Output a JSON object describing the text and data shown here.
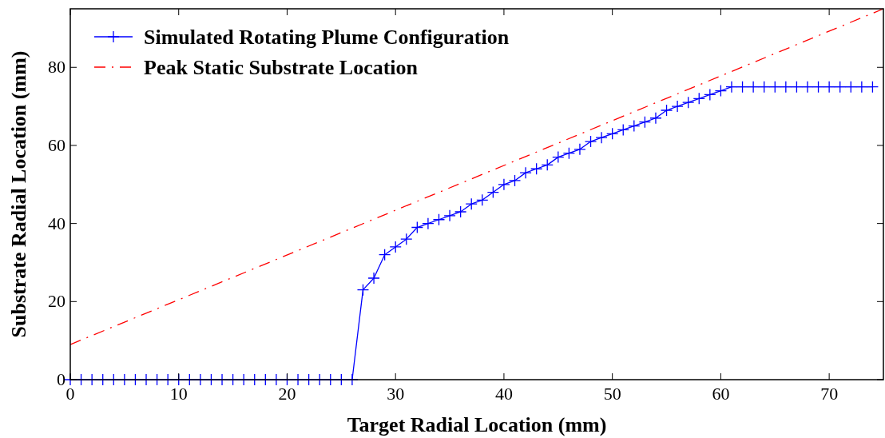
{
  "chart_data": {
    "type": "line",
    "xlabel": "Target Radial Location (mm)",
    "ylabel": "Substrate Radial Location (mm)",
    "xlim": [
      0,
      75
    ],
    "ylim": [
      0,
      95
    ],
    "xticks": [
      0,
      10,
      20,
      30,
      40,
      50,
      60,
      70
    ],
    "yticks": [
      0,
      20,
      40,
      60,
      80
    ],
    "grid": false,
    "legend": "top left",
    "series": [
      {
        "name": "Simulated Rotating Plume Configuration",
        "color": "#0000ff",
        "marker": "cross",
        "line_style": "solid",
        "x": [
          0,
          1,
          2,
          3,
          4,
          5,
          6,
          7,
          8,
          9,
          10,
          11,
          12,
          13,
          14,
          15,
          16,
          17,
          18,
          19,
          20,
          21,
          22,
          23,
          24,
          25,
          26,
          27,
          28,
          29,
          30,
          31,
          32,
          33,
          34,
          35,
          36,
          37,
          38,
          39,
          40,
          41,
          42,
          43,
          44,
          45,
          46,
          47,
          48,
          49,
          50,
          51,
          52,
          53,
          54,
          55,
          56,
          57,
          58,
          59,
          60,
          61,
          62,
          63,
          64,
          65,
          66,
          67,
          68,
          69,
          70,
          71,
          72,
          73,
          74
        ],
        "values": [
          0,
          0,
          0,
          0,
          0,
          0,
          0,
          0,
          0,
          0,
          0,
          0,
          0,
          0,
          0,
          0,
          0,
          0,
          0,
          0,
          0,
          0,
          0,
          0,
          0,
          0,
          0,
          23,
          26,
          32,
          34,
          36,
          39,
          40,
          41,
          42,
          43,
          45,
          46,
          48,
          50,
          51,
          53,
          54,
          55,
          57,
          58,
          59,
          61,
          62,
          63,
          64,
          65,
          66,
          67,
          69,
          70,
          71,
          72,
          73,
          74,
          75,
          75,
          75,
          75,
          75,
          75,
          75,
          75,
          75,
          75,
          75,
          75,
          75,
          75
        ]
      },
      {
        "name": "Peak Static Substrate Location",
        "color": "#ff0000",
        "marker": "none",
        "line_style": "dashdot",
        "x": [
          0,
          75
        ],
        "values": [
          9,
          95
        ]
      }
    ]
  }
}
